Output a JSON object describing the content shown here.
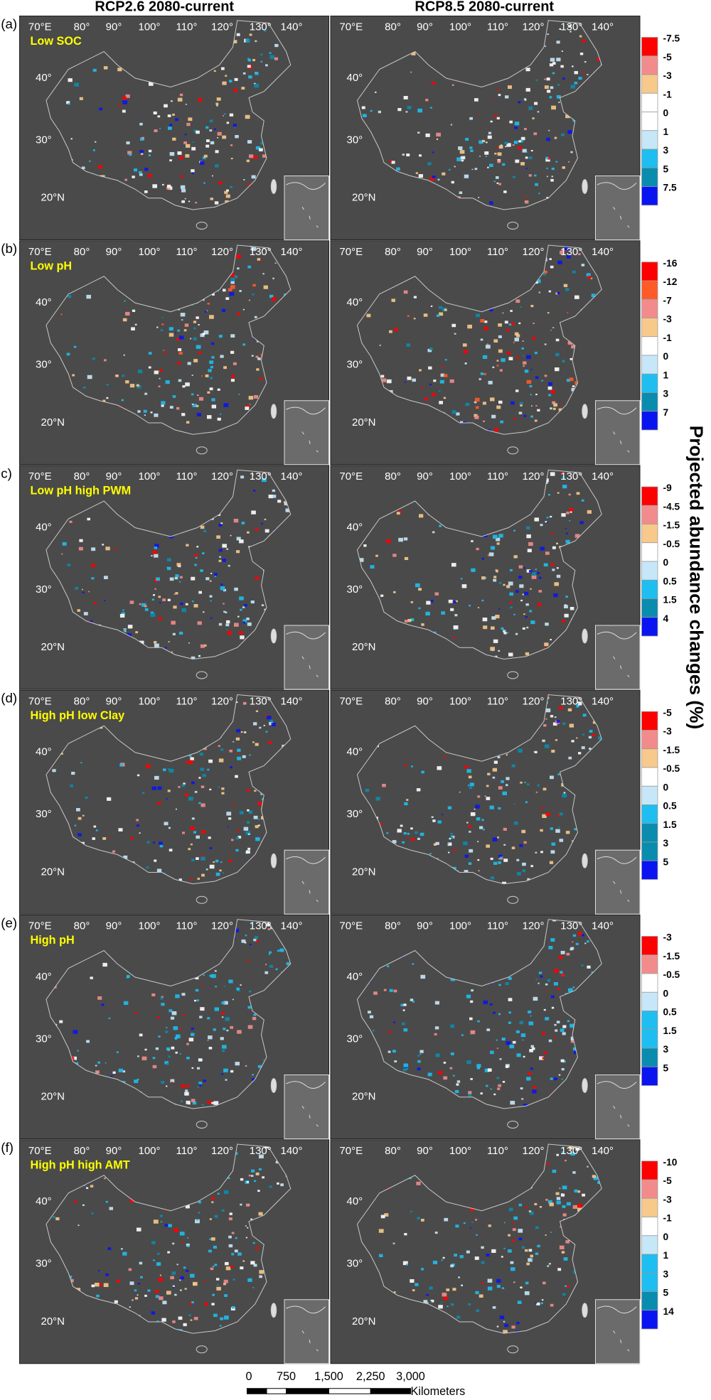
{
  "columns": [
    "RCP2.6 2080-current",
    "RCP8.5 2080-current"
  ],
  "panels": [
    {
      "label": "(a)",
      "name": "Low SOC",
      "legend": [
        {
          "label": "-7.5",
          "color": "#ff0000"
        },
        {
          "label": "-5",
          "color": "#f28c8c"
        },
        {
          "label": "-3",
          "color": "#f7c98a"
        },
        {
          "label": "-1",
          "color": "#ffffff"
        },
        {
          "label": "0",
          "color": "#ffffff"
        },
        {
          "label": "1",
          "color": "#c6e7f7"
        },
        {
          "label": "3",
          "color": "#1ebef0"
        },
        {
          "label": "5",
          "color": "#0a8cae"
        },
        {
          "label": "7.5",
          "color": "#0a14f0"
        }
      ]
    },
    {
      "label": "(b)",
      "name": "Low pH",
      "legend": [
        {
          "label": "-16",
          "color": "#ff0000"
        },
        {
          "label": "-12",
          "color": "#ff5a28"
        },
        {
          "label": "-7",
          "color": "#f28c8c"
        },
        {
          "label": "-3",
          "color": "#f7c98a"
        },
        {
          "label": "-1",
          "color": "#ffffff"
        },
        {
          "label": "0",
          "color": "#c6e7f7"
        },
        {
          "label": "1",
          "color": "#1ebef0"
        },
        {
          "label": "3",
          "color": "#0a8cae"
        },
        {
          "label": "7",
          "color": "#0a14f0"
        }
      ]
    },
    {
      "label": "c)",
      "name": "Low pH high PWM",
      "legend": [
        {
          "label": "-9",
          "color": "#ff0000"
        },
        {
          "label": "-4.5",
          "color": "#f28c8c"
        },
        {
          "label": "-1.5",
          "color": "#f7c98a"
        },
        {
          "label": "-0.5",
          "color": "#ffffff"
        },
        {
          "label": "0",
          "color": "#c6e7f7"
        },
        {
          "label": "0.5",
          "color": "#1ebef0"
        },
        {
          "label": "1.5",
          "color": "#0a8cae"
        },
        {
          "label": "4",
          "color": "#0a14f0"
        }
      ]
    },
    {
      "label": "(d)",
      "name": "High pH low Clay",
      "legend": [
        {
          "label": "-5",
          "color": "#ff0000"
        },
        {
          "label": "-3",
          "color": "#f28c8c"
        },
        {
          "label": "-1.5",
          "color": "#f7c98a"
        },
        {
          "label": "-0.5",
          "color": "#ffffff"
        },
        {
          "label": "0",
          "color": "#c6e7f7"
        },
        {
          "label": "0.5",
          "color": "#1ebef0"
        },
        {
          "label": "1.5",
          "color": "#0a8cae"
        },
        {
          "label": "3",
          "color": "#0a8cae"
        },
        {
          "label": "5",
          "color": "#0a14f0"
        }
      ]
    },
    {
      "label": "(e)",
      "name": "High pH",
      "legend": [
        {
          "label": "-3",
          "color": "#ff0000"
        },
        {
          "label": "-1.5",
          "color": "#f28c8c"
        },
        {
          "label": "-0.5",
          "color": "#ffffff"
        },
        {
          "label": "0",
          "color": "#c6e7f7"
        },
        {
          "label": "0.5",
          "color": "#1ebef0"
        },
        {
          "label": "1.5",
          "color": "#1ebef0"
        },
        {
          "label": "3",
          "color": "#0a8cae"
        },
        {
          "label": "5",
          "color": "#0a14f0"
        }
      ]
    },
    {
      "label": "(f)",
      "name": "High pH high AMT",
      "legend": [
        {
          "label": "-10",
          "color": "#ff0000"
        },
        {
          "label": "-5",
          "color": "#f28c8c"
        },
        {
          "label": "-3",
          "color": "#f7c98a"
        },
        {
          "label": "-1",
          "color": "#ffffff"
        },
        {
          "label": "0",
          "color": "#c6e7f7"
        },
        {
          "label": "1",
          "color": "#1ebef0"
        },
        {
          "label": "3",
          "color": "#1ebef0"
        },
        {
          "label": "5",
          "color": "#0a8cae"
        },
        {
          "label": "14",
          "color": "#0a14f0"
        }
      ]
    }
  ],
  "map_labels": {
    "longitude": [
      "70°E",
      "80°",
      "90°",
      "100°",
      "110°",
      "120°",
      "130°",
      "140°"
    ],
    "latitude": [
      "40°",
      "30°",
      "20°N"
    ]
  },
  "legend_title": "Projected abundance changes (%)",
  "scale_bar": {
    "ticks": [
      "0",
      "750",
      "1,500",
      "2,250",
      "3,000"
    ],
    "unit": "Kilometers"
  }
}
